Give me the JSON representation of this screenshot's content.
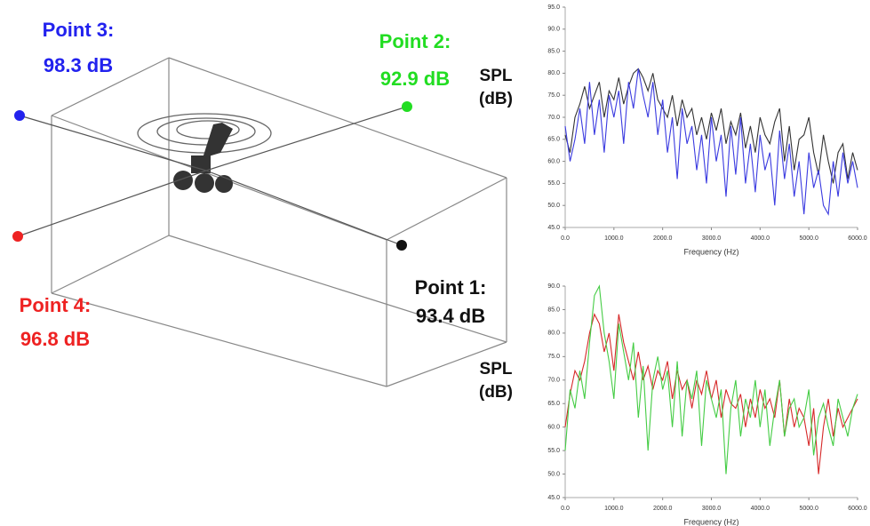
{
  "diagram": {
    "points": [
      {
        "label": "Point 3:",
        "value": "98.3 dB",
        "color": "#2222ee"
      },
      {
        "label": "Point 2:",
        "value": "92.9 dB",
        "color": "#22dd22"
      },
      {
        "label": "Point 1:",
        "value": "93.4 dB",
        "color": "#111111"
      },
      {
        "label": "Point 4:",
        "value": "96.8 dB",
        "color": "#ee2222"
      }
    ]
  },
  "chart_data": [
    {
      "type": "line",
      "ylabel": "SPL (dB)",
      "xlabel": "Frequency (Hz)",
      "x": [
        0,
        100,
        200,
        300,
        400,
        500,
        600,
        700,
        800,
        900,
        1000,
        1100,
        1200,
        1300,
        1400,
        1500,
        1600,
        1700,
        1800,
        1900,
        2000,
        2100,
        2200,
        2300,
        2400,
        2500,
        2600,
        2700,
        2800,
        2900,
        3000,
        3100,
        3200,
        3300,
        3400,
        3500,
        3600,
        3700,
        3800,
        3900,
        4000,
        4100,
        4200,
        4300,
        4400,
        4500,
        4600,
        4700,
        4800,
        4900,
        5000,
        5100,
        5200,
        5300,
        5400,
        5500,
        5600,
        5700,
        5800,
        5900,
        6000
      ],
      "series": [
        {
          "color": "#333333",
          "values": [
            66,
            62,
            70,
            73,
            77,
            72,
            75,
            78,
            70,
            76,
            74,
            79,
            73,
            77,
            80,
            81,
            79,
            76,
            80,
            74,
            72,
            70,
            75,
            68,
            74,
            70,
            72,
            66,
            70,
            65,
            71,
            67,
            72,
            64,
            69,
            66,
            71,
            63,
            68,
            62,
            70,
            66,
            64,
            69,
            72,
            60,
            68,
            58,
            65,
            66,
            70,
            62,
            57,
            66,
            60,
            55,
            62,
            64,
            56,
            62,
            58
          ]
        },
        {
          "color": "#3a3ae0",
          "values": [
            68,
            60,
            65,
            72,
            64,
            78,
            66,
            74,
            62,
            75,
            70,
            76,
            64,
            78,
            72,
            81,
            75,
            70,
            78,
            66,
            74,
            62,
            70,
            56,
            72,
            64,
            68,
            58,
            66,
            55,
            70,
            60,
            66,
            52,
            68,
            57,
            70,
            55,
            64,
            53,
            66,
            58,
            62,
            50,
            67,
            56,
            64,
            52,
            60,
            48,
            62,
            54,
            58,
            50,
            48,
            60,
            52,
            62,
            55,
            60,
            54
          ]
        }
      ],
      "xlim": [
        0,
        6000
      ],
      "xticks": [
        {
          "value": 0,
          "label": "0.0"
        },
        {
          "value": 1000,
          "label": "1000.0"
        },
        {
          "value": 2000,
          "label": "2000.0"
        },
        {
          "value": 3000,
          "label": "3000.0"
        },
        {
          "value": 4000,
          "label": "4000.0"
        },
        {
          "value": 5000,
          "label": "5000.0"
        },
        {
          "value": 6000,
          "label": "6000.0"
        }
      ],
      "ylim": [
        45,
        95
      ],
      "yticks": [
        {
          "value": 45,
          "label": "45.0"
        },
        {
          "value": 50,
          "label": "50.0"
        },
        {
          "value": 55,
          "label": "55.0"
        },
        {
          "value": 60,
          "label": "60.0"
        },
        {
          "value": 65,
          "label": "65.0"
        },
        {
          "value": 70,
          "label": "70.0"
        },
        {
          "value": 75,
          "label": "75.0"
        },
        {
          "value": 80,
          "label": "80.0"
        },
        {
          "value": 85,
          "label": "85.0"
        },
        {
          "value": 90,
          "label": "90.0"
        },
        {
          "value": 95,
          "label": "95.0"
        }
      ]
    },
    {
      "type": "line",
      "ylabel": "SPL (dB)",
      "xlabel": "Frequency (Hz)",
      "x": [
        0,
        100,
        200,
        300,
        400,
        500,
        600,
        700,
        800,
        900,
        1000,
        1100,
        1200,
        1300,
        1400,
        1500,
        1600,
        1700,
        1800,
        1900,
        2000,
        2100,
        2200,
        2300,
        2400,
        2500,
        2600,
        2700,
        2800,
        2900,
        3000,
        3100,
        3200,
        3300,
        3400,
        3500,
        3600,
        3700,
        3800,
        3900,
        4000,
        4100,
        4200,
        4300,
        4400,
        4500,
        4600,
        4700,
        4800,
        4900,
        5000,
        5100,
        5200,
        5300,
        5400,
        5500,
        5600,
        5700,
        5800,
        5900,
        6000
      ],
      "series": [
        {
          "color": "#d62828",
          "values": [
            60,
            67,
            72,
            70,
            74,
            80,
            84,
            82,
            76,
            80,
            72,
            84,
            78,
            74,
            70,
            76,
            70,
            73,
            68,
            72,
            70,
            74,
            66,
            72,
            68,
            70,
            64,
            70,
            67,
            72,
            66,
            70,
            62,
            68,
            65,
            64,
            67,
            60,
            66,
            62,
            68,
            64,
            66,
            62,
            70,
            58,
            66,
            60,
            64,
            62,
            56,
            64,
            50,
            60,
            66,
            58,
            64,
            60,
            62,
            64,
            66
          ]
        },
        {
          "color": "#44cc44",
          "values": [
            55,
            68,
            64,
            72,
            66,
            78,
            88,
            90,
            80,
            74,
            66,
            82,
            76,
            70,
            78,
            62,
            73,
            55,
            70,
            75,
            68,
            72,
            60,
            74,
            58,
            70,
            66,
            72,
            56,
            70,
            66,
            62,
            68,
            50,
            64,
            70,
            58,
            66,
            62,
            70,
            60,
            68,
            56,
            64,
            70,
            58,
            64,
            66,
            60,
            62,
            68,
            54,
            62,
            65,
            60,
            56,
            66,
            62,
            58,
            64,
            67
          ]
        }
      ],
      "xlim": [
        0,
        6000
      ],
      "xticks": [
        {
          "value": 0,
          "label": "0.0"
        },
        {
          "value": 1000,
          "label": "1000.0"
        },
        {
          "value": 2000,
          "label": "2000.0"
        },
        {
          "value": 3000,
          "label": "3000.0"
        },
        {
          "value": 4000,
          "label": "4000.0"
        },
        {
          "value": 5000,
          "label": "5000.0"
        },
        {
          "value": 6000,
          "label": "6000.0"
        }
      ],
      "ylim": [
        45,
        90
      ],
      "yticks": [
        {
          "value": 45,
          "label": "45.0"
        },
        {
          "value": 50,
          "label": "50.0"
        },
        {
          "value": 55,
          "label": "55.0"
        },
        {
          "value": 60,
          "label": "60.0"
        },
        {
          "value": 65,
          "label": "65.0"
        },
        {
          "value": 70,
          "label": "70.0"
        },
        {
          "value": 75,
          "label": "75.0"
        },
        {
          "value": 80,
          "label": "80.0"
        },
        {
          "value": 85,
          "label": "85.0"
        },
        {
          "value": 90,
          "label": "90.0"
        }
      ]
    }
  ]
}
